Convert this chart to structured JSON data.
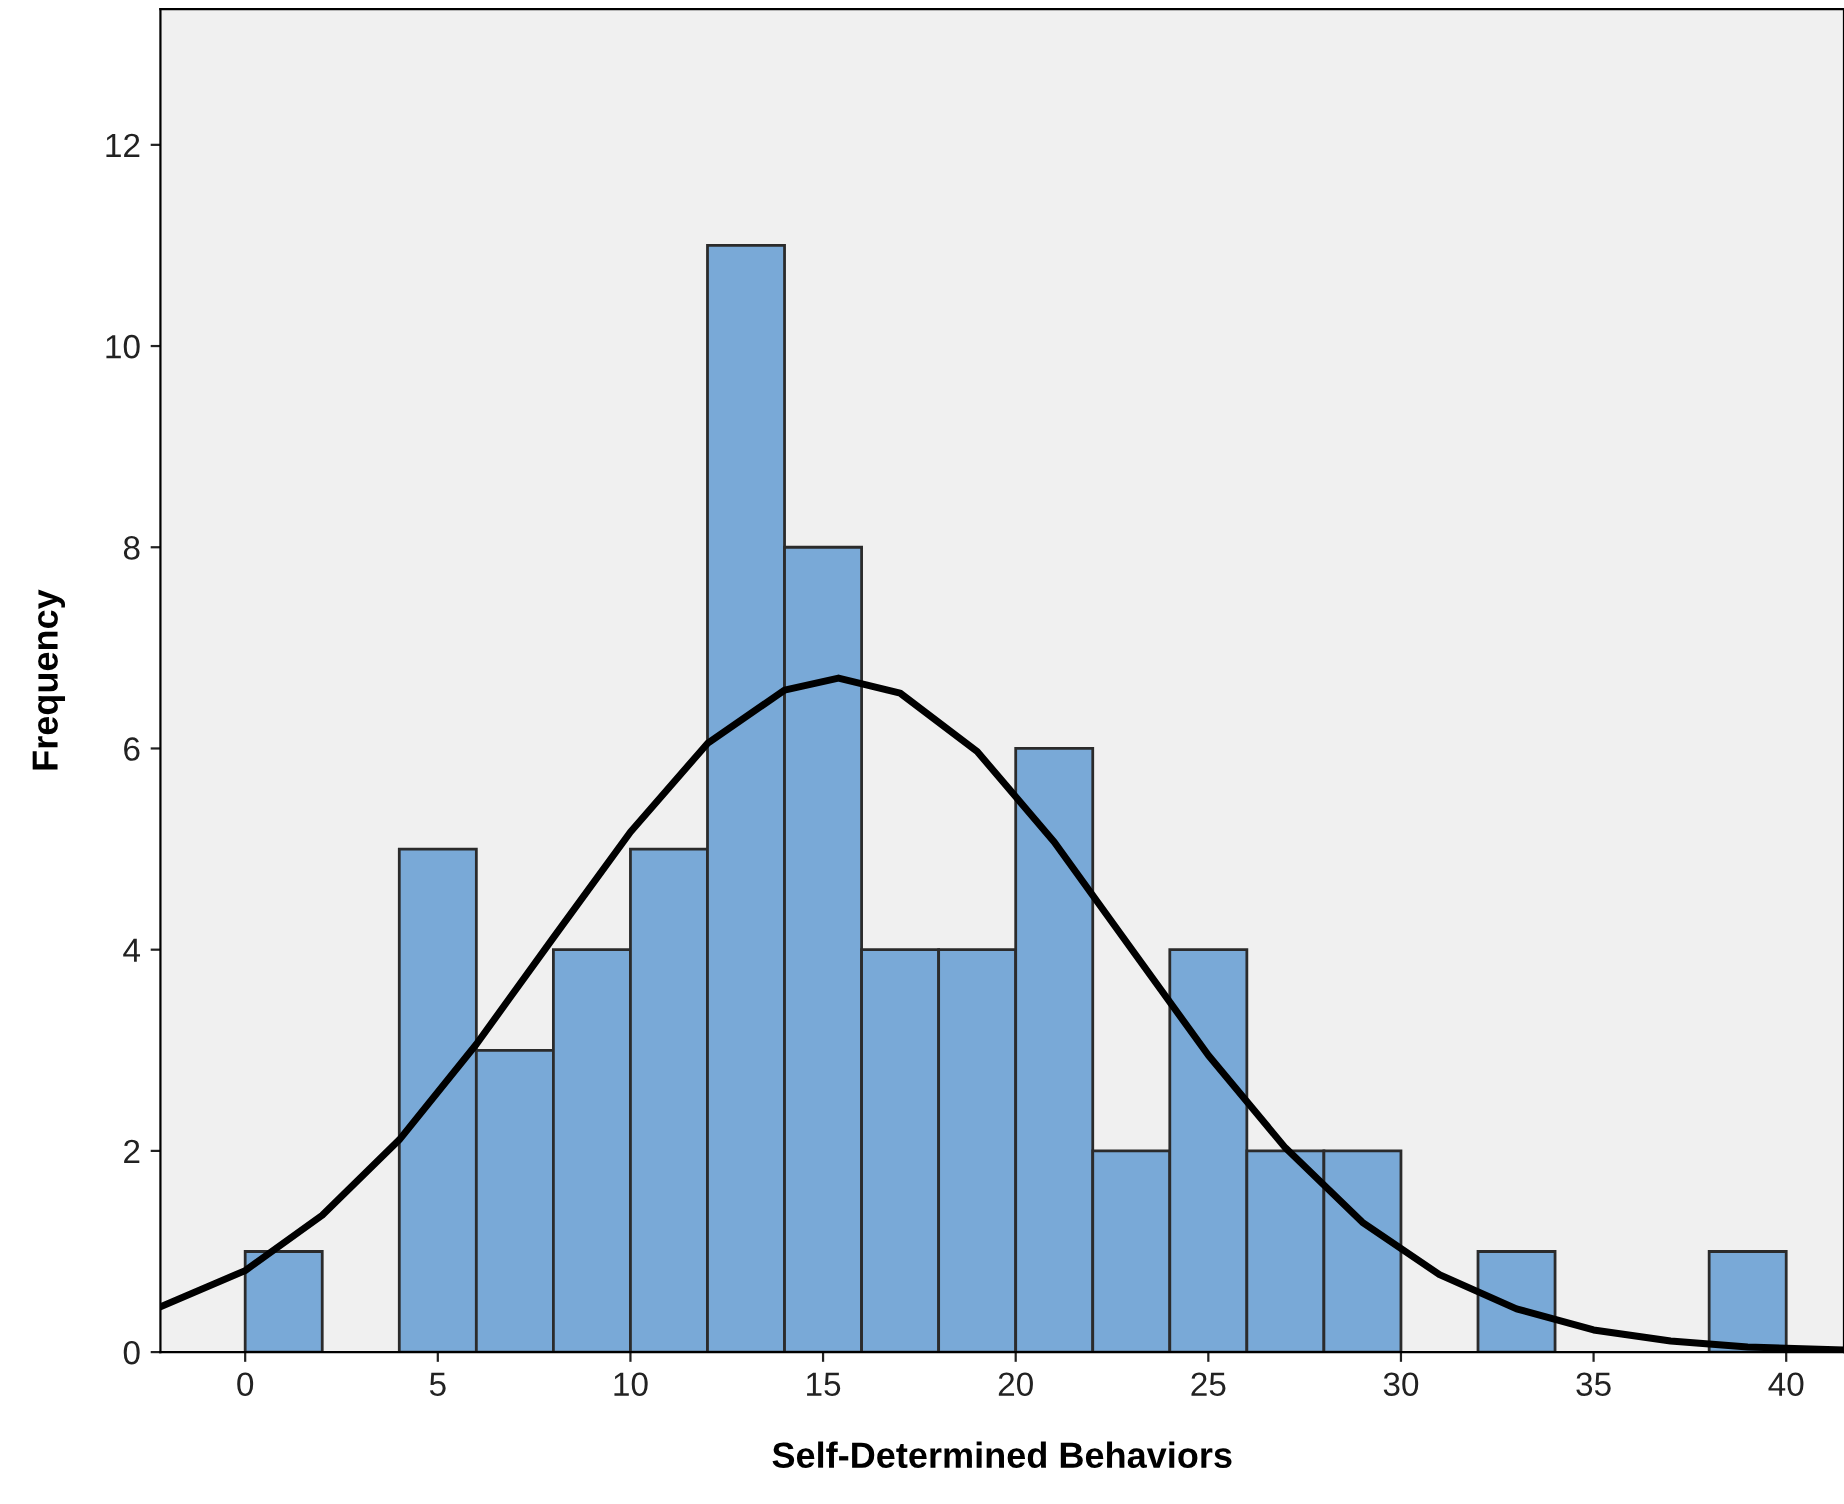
{
  "chart_data": {
    "type": "histogram",
    "xlabel": "Self-Determined Behaviors",
    "ylabel": "Frequency",
    "bins": [
      0,
      2,
      4,
      6,
      8,
      10,
      12,
      14,
      16,
      18,
      20,
      22,
      24,
      26,
      28,
      30,
      32,
      34,
      36,
      38,
      40
    ],
    "values": [
      1,
      0,
      5,
      3,
      4,
      5,
      11,
      8,
      4,
      4,
      6,
      2,
      4,
      2,
      2,
      0,
      1,
      0,
      0,
      1
    ],
    "color": "#79a9d7",
    "series": [
      {
        "type": "line",
        "color": "#000000",
        "x": [
          -2.2,
          0,
          2,
          4,
          6,
          8,
          10,
          12,
          14,
          15.4,
          17,
          19,
          21,
          23,
          25,
          27,
          29,
          31,
          33,
          35,
          37,
          39,
          41.5
        ],
        "values": [
          0.45,
          0.81,
          1.36,
          2.11,
          3.06,
          4.12,
          5.17,
          6.05,
          6.58,
          6.7,
          6.55,
          5.97,
          5.07,
          4.01,
          2.95,
          2.03,
          1.29,
          0.77,
          0.43,
          0.22,
          0.11,
          0.05,
          0.02
        ]
      }
    ],
    "xlim": [
      -2.2,
      41.5
    ],
    "ylim": [
      0,
      13.35
    ],
    "xticks": [
      0,
      5,
      10,
      15,
      20,
      25,
      30,
      35,
      40
    ],
    "yticks": [
      0,
      2,
      4,
      6,
      8,
      10,
      12
    ],
    "grid": false,
    "legend": false
  }
}
